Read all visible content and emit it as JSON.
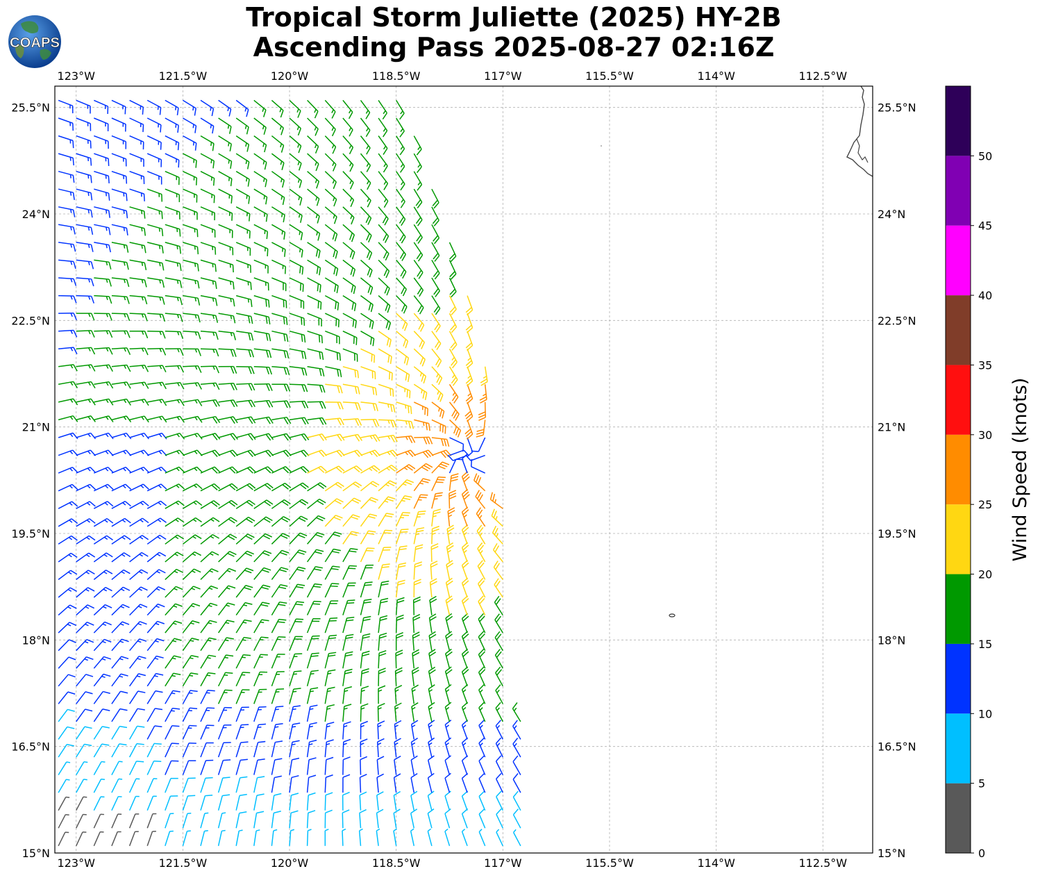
{
  "title": {
    "line1": "Tropical Storm Juliette (2025) HY-2B",
    "line2": "Ascending Pass 2025-08-27 02:16Z"
  },
  "logo_text": "COAPS",
  "map": {
    "lon_range": [
      -123.3,
      -111.8
    ],
    "lat_range": [
      15.0,
      25.8
    ],
    "lon_ticks": [
      {
        "value": -123.0,
        "label": "123°W"
      },
      {
        "value": -121.5,
        "label": "121.5°W"
      },
      {
        "value": -120.0,
        "label": "120°W"
      },
      {
        "value": -118.5,
        "label": "118.5°W"
      },
      {
        "value": -117.0,
        "label": "117°W"
      },
      {
        "value": -115.5,
        "label": "115.5°W"
      },
      {
        "value": -114.0,
        "label": "114°W"
      },
      {
        "value": -112.5,
        "label": "112.5°W"
      }
    ],
    "lat_ticks": [
      {
        "value": 15.0,
        "label": "15°N"
      },
      {
        "value": 16.5,
        "label": "16.5°N"
      },
      {
        "value": 18.0,
        "label": "18°N"
      },
      {
        "value": 19.5,
        "label": "19.5°N"
      },
      {
        "value": 21.0,
        "label": "21°N"
      },
      {
        "value": 22.5,
        "label": "22.5°N"
      },
      {
        "value": 24.0,
        "label": "24°N"
      },
      {
        "value": 25.5,
        "label": "25.5°N"
      }
    ],
    "gridlines": true,
    "storm_center": {
      "lon": -117.5,
      "lat": 20.6
    },
    "swath_east_edge": [
      {
        "lat": 25.7,
        "lon": -118.4
      },
      {
        "lat": 22.5,
        "lon": -117.3
      },
      {
        "lat": 20.0,
        "lon": -117.0
      },
      {
        "lat": 17.5,
        "lon": -116.8
      },
      {
        "lat": 15.0,
        "lon": -116.5
      }
    ],
    "coastline_color": "#444444"
  },
  "colorbar": {
    "label": "Wind Speed (knots)",
    "ticks": [
      "0",
      "5",
      "10",
      "15",
      "20",
      "25",
      "30",
      "35",
      "40",
      "45",
      "50"
    ],
    "bins": [
      {
        "min": 0,
        "max": 5,
        "color": "#595959"
      },
      {
        "min": 5,
        "max": 10,
        "color": "#00bfff"
      },
      {
        "min": 10,
        "max": 15,
        "color": "#0033ff"
      },
      {
        "min": 15,
        "max": 20,
        "color": "#009900"
      },
      {
        "min": 20,
        "max": 25,
        "color": "#ffd712"
      },
      {
        "min": 25,
        "max": 30,
        "color": "#ff8c00"
      },
      {
        "min": 30,
        "max": 35,
        "color": "#ff0f0f"
      },
      {
        "min": 35,
        "max": 40,
        "color": "#803d29"
      },
      {
        "min": 40,
        "max": 45,
        "color": "#ff00ff"
      },
      {
        "min": 45,
        "max": 50,
        "color": "#8000b3"
      },
      {
        "min": 50,
        "max": 55,
        "color": "#2e0059"
      }
    ]
  }
}
